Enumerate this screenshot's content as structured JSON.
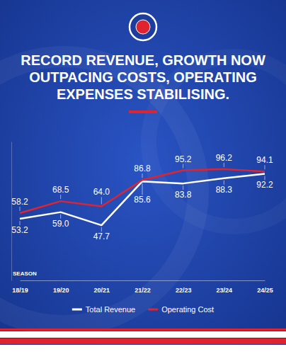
{
  "chart_data": {
    "type": "line",
    "title": "RECORD REVENUE, GROWTH NOW OUTPACING COSTS, OPERATING EXPENSES STABILISING.",
    "x_label": "SEASON",
    "categories": [
      "18/19",
      "19/20",
      "20/21",
      "21/22",
      "22/23",
      "23/24",
      "24/25"
    ],
    "series": [
      {
        "name": "Total Revenue",
        "color": "#ffffff",
        "values": [
          53.2,
          59.0,
          47.7,
          85.6,
          83.8,
          88.3,
          92.2
        ],
        "value_labels": [
          "53.2",
          "59.0",
          "47.7",
          "85.6",
          "83.8",
          "88.3",
          "92.2"
        ]
      },
      {
        "name": "Operating Cost",
        "color": "#e0242f",
        "values": [
          58.2,
          68.5,
          64.0,
          86.8,
          95.2,
          96.2,
          94.1
        ],
        "value_labels": [
          "58.2",
          "68.5",
          "64.0",
          "86.8",
          "95.2",
          "96.2",
          "94.1"
        ]
      }
    ],
    "ylim": [
      0,
      120
    ],
    "data_labels": true,
    "tick_labels": "x",
    "legend": "bottom"
  }
}
